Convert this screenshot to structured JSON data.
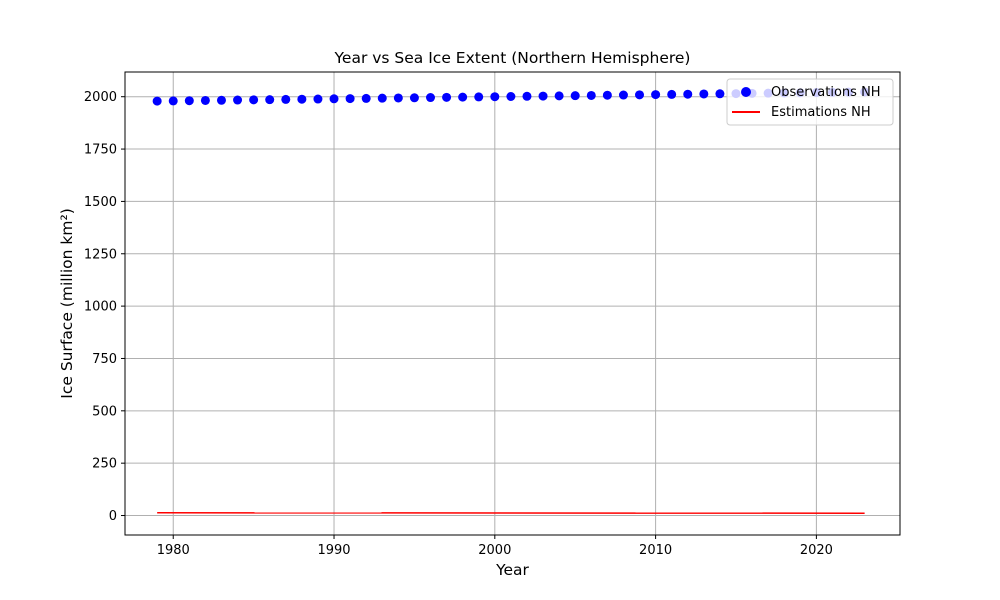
{
  "chart_data": {
    "type": "scatter",
    "title": "Year vs Sea Ice Extent (Northern Hemisphere)",
    "xlabel": "Year",
    "ylabel": "Ice Surface (million km²)",
    "xlim": [
      1977,
      2025.2
    ],
    "ylim": [
      -93,
      2118
    ],
    "xticks": [
      1980,
      1990,
      2000,
      2010,
      2020
    ],
    "yticks": [
      0,
      250,
      500,
      750,
      1000,
      1250,
      1500,
      1750,
      2000
    ],
    "grid": true,
    "legend_position": "upper-right",
    "series": [
      {
        "name": "Observations NH",
        "type": "scatter",
        "color": "#0000ff",
        "x": [
          1979,
          1980,
          1981,
          1982,
          1983,
          1984,
          1985,
          1986,
          1987,
          1988,
          1989,
          1990,
          1991,
          1992,
          1993,
          1994,
          1995,
          1996,
          1997,
          1998,
          1999,
          2000,
          2001,
          2002,
          2003,
          2004,
          2005,
          2006,
          2007,
          2008,
          2009,
          2010,
          2011,
          2012,
          2013,
          2014,
          2015,
          2016,
          2017,
          2018,
          2019,
          2020,
          2021,
          2022,
          2023
        ],
        "y": [
          1979,
          1980,
          1981,
          1982,
          1983,
          1984,
          1985,
          1986,
          1987,
          1988,
          1989,
          1990,
          1991,
          1992,
          1993,
          1994,
          1995,
          1996,
          1997,
          1998,
          1999,
          2000,
          2001,
          2002,
          2003,
          2004,
          2005,
          2006,
          2007,
          2008,
          2009,
          2010,
          2011,
          2012,
          2013,
          2014,
          2015,
          2016,
          2017,
          2018,
          2019,
          2020,
          2021,
          2022,
          2023
        ]
      },
      {
        "name": "Estimations NH",
        "type": "line",
        "color": "#ff0000",
        "x": [
          1979,
          2023
        ],
        "y": [
          13,
          11
        ]
      }
    ]
  }
}
